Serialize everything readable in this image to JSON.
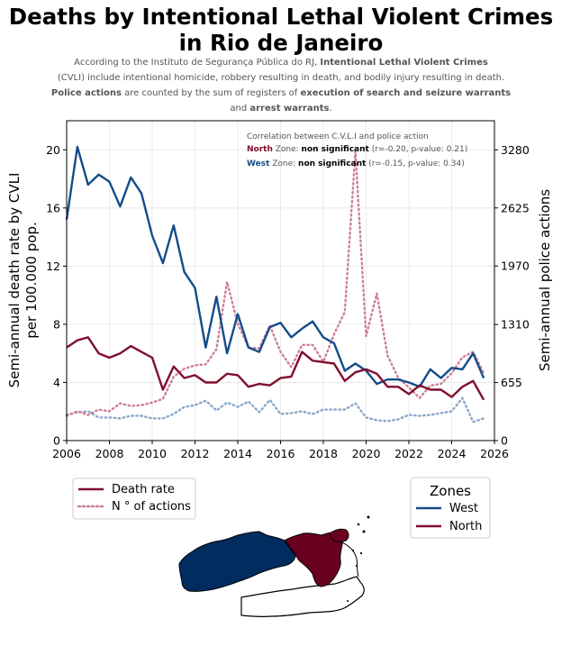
{
  "title": "Deaths by Intentional Lethal Violent Crimes in Rio de Janeiro",
  "title_line1": "Deaths by Intentional Lethal Violent Crimes",
  "title_line2": "in Rio de Janeiro",
  "subtitle": {
    "l1_a": "According to the Instituto de Segurança Pública do RJ, ",
    "l1_b": "Intentional Lethal Violent Crimes",
    "l2": "(CVLI) include intentional homicide, robbery resulting in death, and bodily injury resulting in death.",
    "l3_a": "Police actions",
    "l3_b": " are counted by the sum of registers of ",
    "l3_c": "execution of search and seizure warrants",
    "l4_a": "and ",
    "l4_b": "arrest warrants",
    "l4_c": "."
  },
  "annotation": {
    "header": "Correlation between C.V.L.I and police action",
    "north_zone": "North",
    "west_zone": "West",
    "zone_word": " Zone: ",
    "verdict": "non significant",
    "north_stats": " (r=-0.20, p-value: 0.21)",
    "west_stats": " (r=-0.15, p-value: 0.34)"
  },
  "legend_lines": {
    "death_rate": "Death rate",
    "actions": "N$^\\circ$ of actions",
    "actions_display": "N ° of actions"
  },
  "legend_zones": {
    "title": "Zones",
    "west": "West",
    "north": "North"
  },
  "colors": {
    "west": "#154c8a",
    "north": "#800e2c",
    "west_dotted": "#8aa6c8",
    "north_dotted": "#cc7f96"
  },
  "chart_data": {
    "type": "line",
    "xlabel": "",
    "ylabel": "Semi-annual death rate by CVLI per 100.000 pop.",
    "ylabel_line1": "Semi-annual death rate by CVLI",
    "ylabel_line2": "per 100.000 pop.",
    "y2label": "Semi-annual police actions",
    "xlim": [
      2006,
      2026
    ],
    "ylim": [
      0,
      22
    ],
    "y2lim": [
      0,
      3609
    ],
    "xticks": [
      "2006",
      "2008",
      "2010",
      "2012",
      "2014",
      "2016",
      "2018",
      "2020",
      "2022",
      "2024",
      "2026"
    ],
    "yticks": [
      "0",
      "4",
      "8",
      "12",
      "16",
      "20"
    ],
    "y2ticks": [
      "0",
      "655",
      "1310",
      "1970",
      "2625",
      "3280"
    ],
    "grid": true,
    "x": [
      2006.0,
      2006.5,
      2007.0,
      2007.5,
      2008.0,
      2008.5,
      2009.0,
      2009.5,
      2010.0,
      2010.5,
      2011.0,
      2011.5,
      2012.0,
      2012.5,
      2013.0,
      2013.5,
      2014.0,
      2014.5,
      2015.0,
      2015.5,
      2016.0,
      2016.5,
      2017.0,
      2017.5,
      2018.0,
      2018.5,
      2019.0,
      2019.5,
      2020.0,
      2020.5,
      2021.0,
      2021.5,
      2022.0,
      2022.5,
      2023.0,
      2023.5,
      2024.0,
      2024.5,
      2025.0,
      2025.5
    ],
    "series": [
      {
        "name": "West",
        "metric": "Death rate",
        "axis": "left",
        "style": "solid",
        "values": [
          15.2,
          20.2,
          17.6,
          18.3,
          17.8,
          16.1,
          18.1,
          17.0,
          14.1,
          12.2,
          14.8,
          11.6,
          10.5,
          6.4,
          9.9,
          6.0,
          8.7,
          6.4,
          6.1,
          7.8,
          8.1,
          7.1,
          7.7,
          8.2,
          7.1,
          6.7,
          4.8,
          5.3,
          4.8,
          3.9,
          4.2,
          4.2,
          4.0,
          3.7,
          4.9,
          4.3,
          5.0,
          4.9,
          6.0,
          4.3
        ]
      },
      {
        "name": "North",
        "metric": "Death rate",
        "axis": "left",
        "style": "solid",
        "values": [
          6.4,
          6.9,
          7.1,
          6.0,
          5.7,
          6.0,
          6.5,
          6.1,
          5.7,
          3.5,
          5.1,
          4.3,
          4.5,
          4.0,
          4.0,
          4.6,
          4.5,
          3.7,
          3.9,
          3.8,
          4.3,
          4.4,
          6.1,
          5.5,
          5.4,
          5.3,
          4.1,
          4.7,
          4.9,
          4.6,
          3.7,
          3.7,
          3.2,
          3.8,
          3.5,
          3.5,
          3.0,
          3.7,
          4.1,
          2.8
        ]
      },
      {
        "name": "North",
        "metric": "N° of actions",
        "axis": "right",
        "style": "dotted",
        "values": [
          280,
          330,
          290,
          350,
          330,
          420,
          390,
          400,
          430,
          470,
          720,
          810,
          850,
          860,
          1030,
          1790,
          1320,
          1050,
          1040,
          1300,
          1000,
          830,
          1080,
          1080,
          890,
          1200,
          1450,
          3260,
          1180,
          1660,
          960,
          710,
          600,
          480,
          620,
          640,
          760,
          940,
          1000,
          760
        ]
      },
      {
        "name": "West",
        "metric": "N° of actions",
        "axis": "right",
        "style": "dotted",
        "values": [
          290,
          320,
          330,
          260,
          260,
          250,
          280,
          280,
          250,
          250,
          300,
          380,
          400,
          450,
          340,
          430,
          380,
          440,
          320,
          460,
          300,
          310,
          330,
          300,
          350,
          350,
          350,
          420,
          260,
          230,
          220,
          240,
          290,
          280,
          290,
          310,
          330,
          480,
          210,
          250
        ]
      }
    ]
  }
}
